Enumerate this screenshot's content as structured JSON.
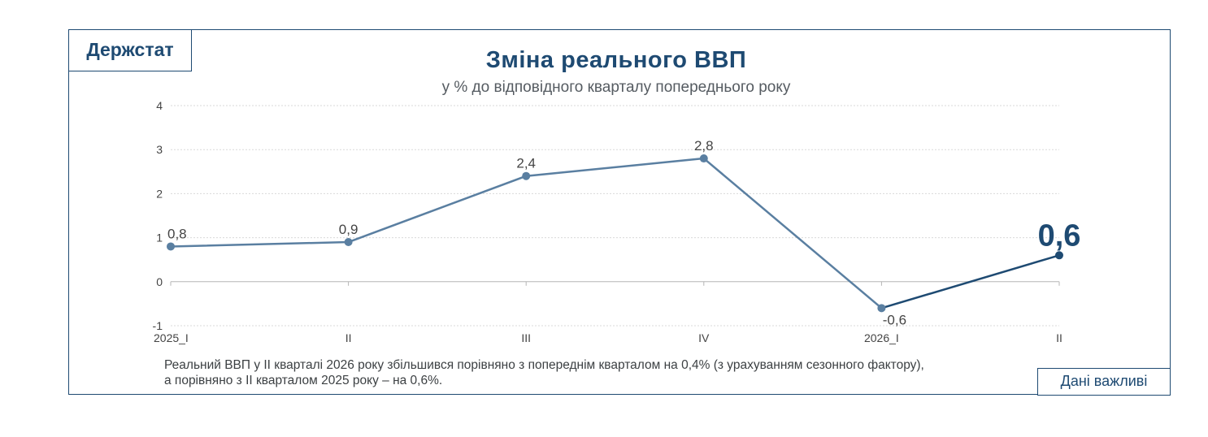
{
  "brand": "Держстат",
  "badge": "Дані важливі",
  "note": {
    "line1": "Реальний ВВП у ІІ кварталі 2026 року збільшився порівняно з попереднім кварталом на 0,4% (з урахуванням сезонного фактору),",
    "line2": "а порівняно з ІІ кварталом 2025 року –  на 0,6%."
  },
  "colors": {
    "primary": "#1e4a72",
    "series": "#5a7fa1",
    "grid": "#d9d9d9"
  },
  "chart_data": {
    "type": "line",
    "title": "Зміна реального ВВП",
    "subtitle": "у % до відповідного кварталу попереднього року",
    "xlabel": "",
    "ylabel": "",
    "categories": [
      "2025_I",
      "II",
      "III",
      "IV",
      "2026_I",
      "II"
    ],
    "series": [
      {
        "values": [
          0.8,
          0.9,
          2.4,
          2.8,
          -0.6,
          0.6
        ],
        "labels": [
          "0,8",
          "0,9",
          "2,4",
          "2,8",
          "-0,6",
          "0,6"
        ]
      }
    ],
    "highlight_last": true,
    "ylim": [
      -1,
      4
    ],
    "yticks": [
      -1,
      0,
      1,
      2,
      3,
      4
    ],
    "grid": true,
    "legend": "none"
  }
}
